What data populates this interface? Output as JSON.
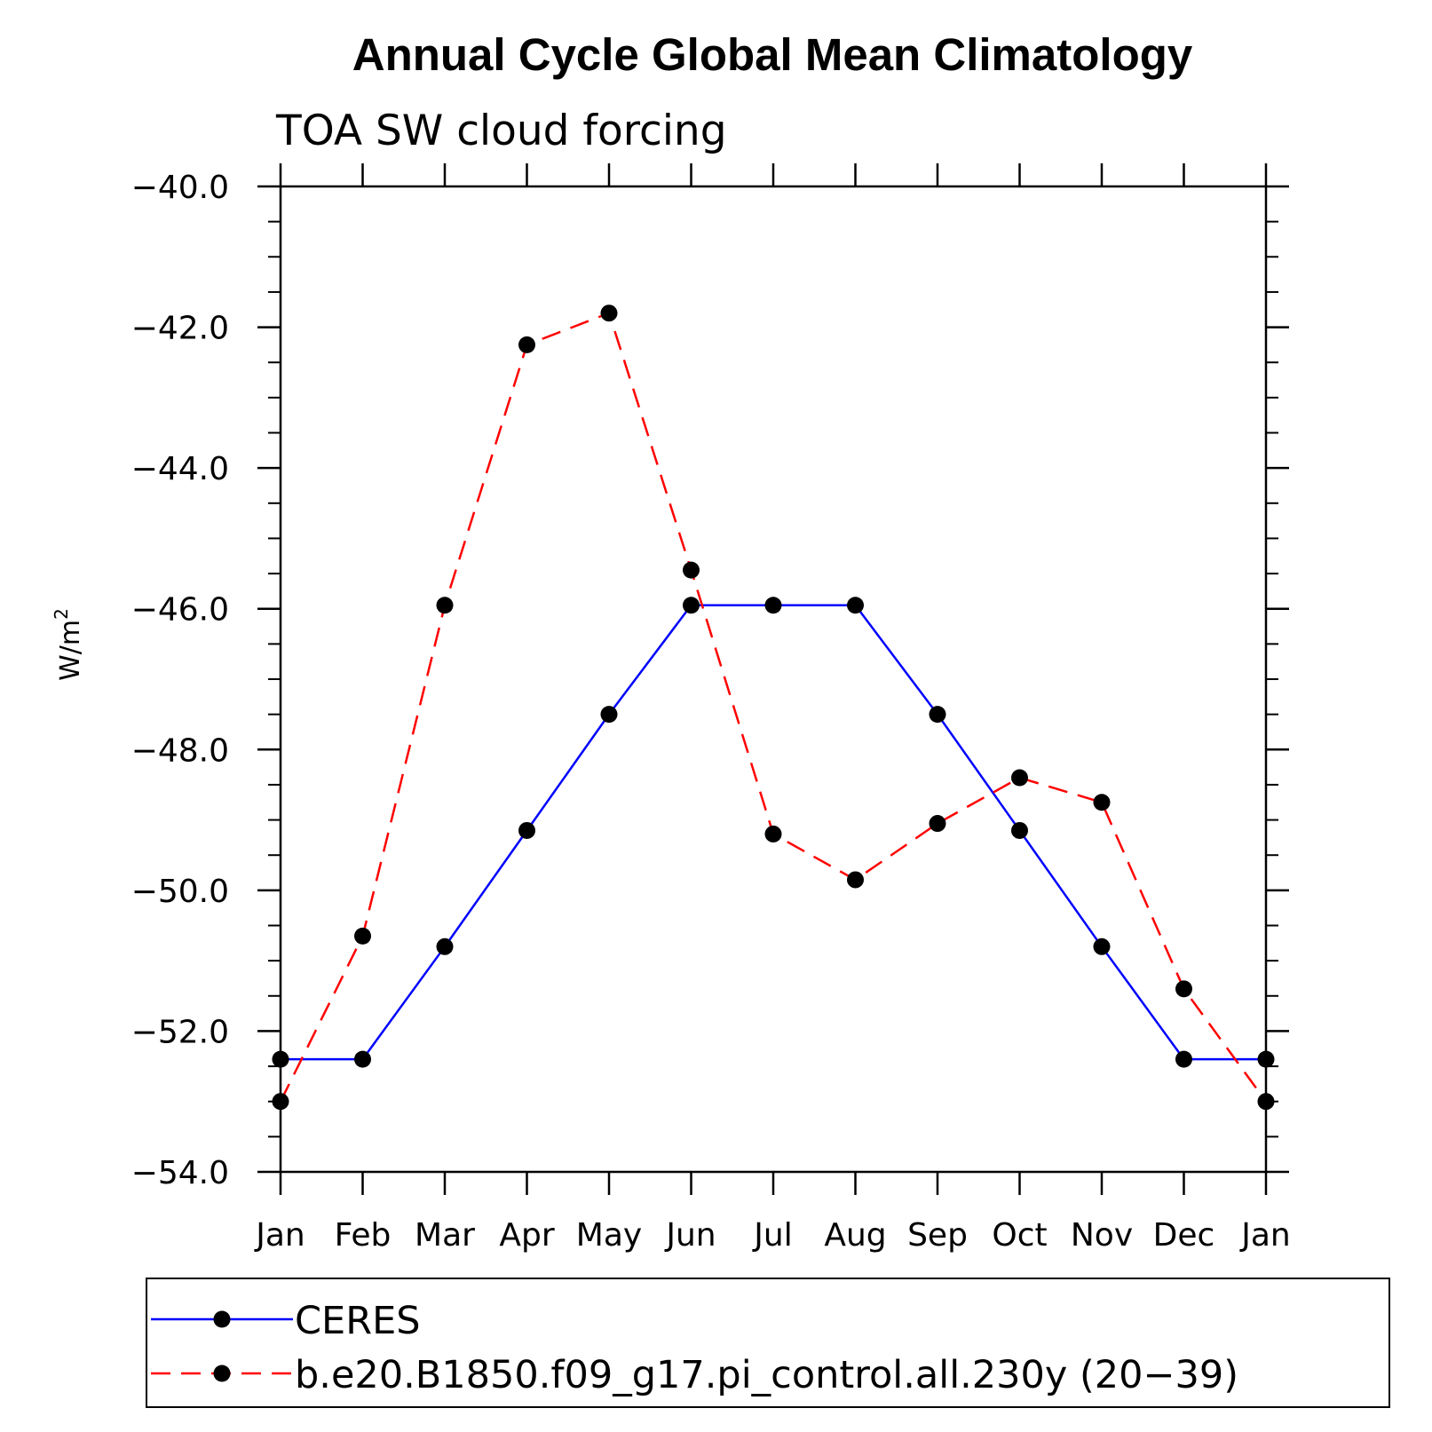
{
  "chart_data": {
    "type": "line",
    "title": "Annual Cycle Global Mean Climatology",
    "subtitle": "TOA SW cloud forcing",
    "ylabel": "W/m",
    "ylabel_superscript": "2",
    "xlabel": "",
    "categories": [
      "Jan",
      "Feb",
      "Mar",
      "Apr",
      "May",
      "Jun",
      "Jul",
      "Aug",
      "Sep",
      "Oct",
      "Nov",
      "Dec",
      "Jan"
    ],
    "ylim": [
      -54.0,
      -40.0
    ],
    "yticks": [
      -40.0,
      -42.0,
      -44.0,
      -46.0,
      -48.0,
      -50.0,
      -52.0,
      -54.0
    ],
    "ytick_labels": [
      "−40.0",
      "−42.0",
      "−44.0",
      "−46.0",
      "−48.0",
      "−50.0",
      "−52.0",
      "−54.0"
    ],
    "grid": false,
    "legend_position": "bottom",
    "series": [
      {
        "name": "CERES",
        "color": "#0000ff",
        "dash": "solid",
        "marker": "filled-circle",
        "values": [
          -52.4,
          -52.4,
          -50.8,
          -49.15,
          -47.5,
          -45.95,
          -45.95,
          -45.95,
          -47.5,
          -49.15,
          -50.8,
          -52.4,
          -52.4
        ]
      },
      {
        "name": "b.e20.B1850.f09_g17.pi_control.all.230y (20−39)",
        "color": "#ff0000",
        "dash": "dashed",
        "marker": "filled-circle",
        "values": [
          -53.0,
          -50.65,
          -45.95,
          -42.25,
          -41.8,
          -45.45,
          -49.2,
          -49.85,
          -49.05,
          -48.4,
          -48.75,
          -51.4,
          -53.0
        ]
      }
    ]
  }
}
